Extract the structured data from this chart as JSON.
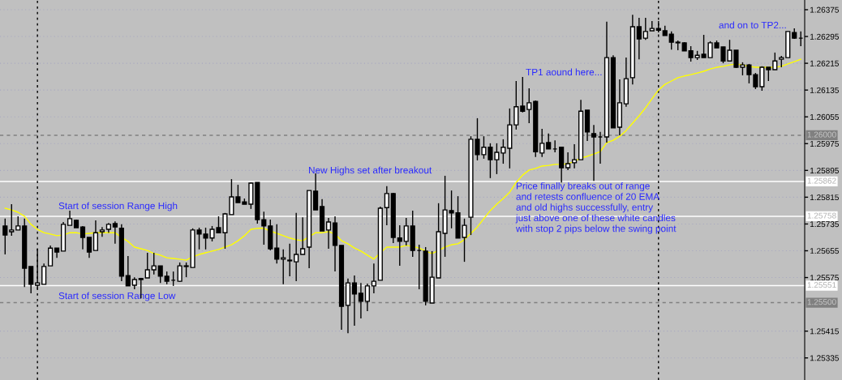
{
  "chart_data": {
    "type": "candlestick",
    "categories": [
      null,
      null,
      null,
      null,
      null,
      null,
      null,
      null,
      null,
      null,
      null,
      null,
      null,
      null,
      null,
      null,
      null,
      null,
      null,
      null,
      null,
      null,
      null,
      null,
      null,
      null,
      null,
      null,
      null,
      null,
      null,
      null,
      null,
      null,
      null,
      null,
      null,
      null,
      null,
      null,
      null,
      null,
      null,
      null,
      null,
      null,
      null,
      null,
      null,
      null,
      null,
      null,
      null,
      null,
      null,
      null,
      null,
      null,
      null,
      null,
      null,
      null,
      null,
      null,
      null,
      null,
      null,
      null,
      null,
      null,
      null,
      null,
      null,
      null,
      null,
      null,
      null,
      null,
      null,
      null,
      null,
      null,
      null,
      null,
      null,
      null,
      null,
      null,
      null,
      null,
      null,
      null,
      null,
      null,
      null,
      null,
      null,
      null,
      null,
      null,
      null,
      null,
      null,
      null,
      null,
      null,
      null,
      null,
      null,
      null,
      null,
      null,
      null,
      null,
      null,
      null,
      null,
      null,
      null,
      null,
      null,
      null,
      null,
      null
    ],
    "ohlc": [
      [
        1.25729,
        1.25751,
        1.25644,
        1.25702
      ],
      [
        1.25712,
        1.25794,
        1.257,
        1.25717
      ],
      [
        1.25717,
        1.25758,
        1.25717,
        1.25729
      ],
      [
        1.25729,
        1.25751,
        1.25547,
        1.25603
      ],
      [
        1.25608,
        1.25608,
        1.25528,
        1.25555
      ],
      [
        1.25552,
        1.25661,
        1.25542,
        1.25559
      ],
      [
        1.25555,
        1.25617,
        1.25555,
        1.25608
      ],
      [
        1.2561,
        1.25671,
        1.2561,
        1.25663
      ],
      [
        1.25663,
        1.25663,
        1.25634,
        1.25651
      ],
      [
        1.25654,
        1.25741,
        1.25654,
        1.25734
      ],
      [
        1.25731,
        1.25775,
        1.25731,
        1.25751
      ],
      [
        1.25746,
        1.25748,
        1.25724,
        1.25724
      ],
      [
        1.25726,
        1.25729,
        1.25659,
        1.25695
      ],
      [
        1.25695,
        1.25695,
        1.25634,
        1.25651
      ],
      [
        1.25656,
        1.25746,
        1.25656,
        1.25709
      ],
      [
        1.25712,
        1.25726,
        1.25697,
        1.25717
      ],
      [
        1.25719,
        1.25738,
        1.25709,
        1.25734
      ],
      [
        1.25736,
        1.25743,
        1.25676,
        1.25726
      ],
      [
        1.25722,
        1.25734,
        1.25564,
        1.25579
      ],
      [
        1.25581,
        1.25639,
        1.2555,
        1.2555
      ],
      [
        1.25552,
        1.25576,
        1.2554,
        1.25569
      ],
      [
        1.25572,
        1.25574,
        1.25513,
        1.25569
      ],
      [
        1.25574,
        1.25649,
        1.25574,
        1.25598
      ],
      [
        1.25598,
        1.25649,
        1.25584,
        1.2561
      ],
      [
        1.2561,
        1.2561,
        1.25559,
        1.25579
      ],
      [
        1.25579,
        1.25593,
        1.25555,
        1.25564
      ],
      [
        1.25567,
        1.25593,
        1.2555,
        1.25567
      ],
      [
        1.25564,
        1.2562,
        1.25562,
        1.2561
      ],
      [
        1.2561,
        1.2562,
        1.25576,
        1.25608
      ],
      [
        1.25605,
        1.25722,
        1.25605,
        1.25717
      ],
      [
        1.25717,
        1.25724,
        1.25659,
        1.25705
      ],
      [
        1.25705,
        1.25724,
        1.25659,
        1.25693
      ],
      [
        1.25693,
        1.25729,
        1.25683,
        1.25719
      ],
      [
        1.25724,
        1.25758,
        1.25709,
        1.25709
      ],
      [
        1.25709,
        1.25768,
        1.25661,
        1.25765
      ],
      [
        1.25763,
        1.25869,
        1.25763,
        1.25816
      ],
      [
        1.25816,
        1.25852,
        1.25799,
        1.25799
      ],
      [
        1.25801,
        1.25811,
        1.25794,
        1.25794
      ],
      [
        1.25794,
        1.25859,
        1.2578,
        1.25857
      ],
      [
        1.25859,
        1.25859,
        1.25736,
        1.25748
      ],
      [
        1.25748,
        1.25772,
        1.25673,
        1.25729
      ],
      [
        1.25729,
        1.25748,
        1.25656,
        1.25661
      ],
      [
        1.25663,
        1.25734,
        1.25617,
        1.2563
      ],
      [
        1.2563,
        1.25659,
        1.25555,
        1.25634
      ],
      [
        1.25627,
        1.25676,
        1.25579,
        1.25625
      ],
      [
        1.25622,
        1.25768,
        1.25564,
        1.25644
      ],
      [
        1.25644,
        1.25755,
        1.25644,
        1.25661
      ],
      [
        1.25666,
        1.25835,
        1.25603,
        1.25835
      ],
      [
        1.25833,
        1.25886,
        1.25777,
        1.25777
      ],
      [
        1.25787,
        1.25809,
        1.25714,
        1.25714
      ],
      [
        1.25717,
        1.25753,
        1.25661,
        1.25741
      ],
      [
        1.25738,
        1.25758,
        1.25593,
        1.25671
      ],
      [
        1.25671,
        1.25671,
        1.25419,
        1.25489
      ],
      [
        1.25492,
        1.25572,
        1.25409,
        1.25559
      ],
      [
        1.25559,
        1.25581,
        1.25431,
        1.25526
      ],
      [
        1.25528,
        1.25559,
        1.25453,
        1.25504
      ],
      [
        1.25504,
        1.25557,
        1.25475,
        1.2555
      ],
      [
        1.2555,
        1.25617,
        1.25528,
        1.25564
      ],
      [
        1.25567,
        1.25787,
        1.25567,
        1.25782
      ],
      [
        1.25784,
        1.25848,
        1.25731,
        1.25826
      ],
      [
        1.25826,
        1.25828,
        1.25678,
        1.25695
      ],
      [
        1.25693,
        1.25731,
        1.2561,
        1.25683
      ],
      [
        1.25683,
        1.25753,
        1.25671,
        1.25729
      ],
      [
        1.25729,
        1.25775,
        1.25637,
        1.25656
      ],
      [
        1.25656,
        1.25673,
        1.2554,
        1.25656
      ],
      [
        1.25654,
        1.25666,
        1.25492,
        1.25504
      ],
      [
        1.25499,
        1.25654,
        1.25499,
        1.25576
      ],
      [
        1.25574,
        1.25797,
        1.25574,
        1.25712
      ],
      [
        1.25707,
        1.25879,
        1.25637,
        1.25777
      ],
      [
        1.25775,
        1.25835,
        1.25722,
        1.25768
      ],
      [
        1.25768,
        1.25818,
        1.25693,
        1.25693
      ],
      [
        1.25695,
        1.25751,
        1.25622,
        1.25731
      ],
      [
        1.25755,
        1.25997,
        1.25702,
        1.25988
      ],
      [
        1.25988,
        1.26051,
        1.25925,
        1.25942
      ],
      [
        1.25942,
        1.25997,
        1.2593,
        1.25964
      ],
      [
        1.25964,
        1.25976,
        1.25872,
        1.25927
      ],
      [
        1.25927,
        1.25976,
        1.25884,
        1.25949
      ],
      [
        1.25947,
        1.25988,
        1.25915,
        1.25964
      ],
      [
        1.25961,
        1.2608,
        1.25901,
        1.26031
      ],
      [
        1.26031,
        1.26162,
        1.26017,
        1.26085
      ],
      [
        1.26087,
        1.26174,
        1.26068,
        1.26072
      ],
      [
        1.26077,
        1.2614,
        1.26036,
        1.26097
      ],
      [
        1.26101,
        1.26104,
        1.25935,
        1.25951
      ],
      [
        1.25947,
        1.26019,
        1.25935,
        1.25976
      ],
      [
        1.25978,
        1.26005,
        1.25959,
        1.25959
      ],
      [
        1.25959,
        1.25985,
        1.25949,
        1.25959
      ],
      [
        1.25964,
        1.25964,
        1.25859,
        1.25903
      ],
      [
        1.25903,
        1.25949,
        1.25896,
        1.25915
      ],
      [
        1.25918,
        1.25973,
        1.25901,
        1.25927
      ],
      [
        1.25927,
        1.26106,
        1.25927,
        1.26072
      ],
      [
        1.26075,
        1.26075,
        1.25983,
        1.2601
      ],
      [
        1.26005,
        1.26031,
        1.25864,
        1.25995
      ],
      [
        1.25995,
        1.2601,
        1.25915,
        1.25995
      ],
      [
        1.25995,
        1.26339,
        1.25978,
        1.26232
      ],
      [
        1.26232,
        1.26239,
        1.26022,
        1.26022
      ],
      [
        1.26024,
        1.26167,
        1.26,
        1.26097
      ],
      [
        1.26094,
        1.26232,
        1.26085,
        1.26169
      ],
      [
        1.26172,
        1.2636,
        1.26152,
        1.26324
      ],
      [
        1.26324,
        1.26351,
        1.26227,
        1.26288
      ],
      [
        1.2629,
        1.26351,
        1.26285,
        1.2631
      ],
      [
        1.26312,
        1.26341,
        1.26312,
        1.26319
      ],
      [
        1.26319,
        1.26341,
        1.26307,
        1.26314
      ],
      [
        1.26312,
        1.26327,
        1.26298,
        1.26298
      ],
      [
        1.26302,
        1.2631,
        1.26256,
        1.26278
      ],
      [
        1.26278,
        1.26283,
        1.26254,
        1.26276
      ],
      [
        1.26276,
        1.26278,
        1.26252,
        1.26252
      ],
      [
        1.26252,
        1.26266,
        1.2622,
        1.26232
      ],
      [
        1.26232,
        1.26252,
        1.26225,
        1.26239
      ],
      [
        1.26242,
        1.263,
        1.26232,
        1.26232
      ],
      [
        1.26232,
        1.26281,
        1.26232,
        1.26276
      ],
      [
        1.26276,
        1.26283,
        1.26261,
        1.26261
      ],
      [
        1.26264,
        1.26264,
        1.26215,
        1.26222
      ],
      [
        1.26222,
        1.26285,
        1.26222,
        1.26254
      ],
      [
        1.26254,
        1.26254,
        1.26201,
        1.26203
      ],
      [
        1.26203,
        1.26218,
        1.26179,
        1.2621
      ],
      [
        1.2621,
        1.26213,
        1.26155,
        1.26181
      ],
      [
        1.26181,
        1.26186,
        1.26138,
        1.26145
      ],
      [
        1.26145,
        1.26206,
        1.26133,
        1.26203
      ],
      [
        1.26203,
        1.26203,
        1.26162,
        1.26196
      ],
      [
        1.26196,
        1.26247,
        1.26196,
        1.26222
      ],
      [
        1.26227,
        1.26237,
        1.26203,
        1.26232
      ],
      [
        1.26232,
        1.2631,
        1.26232,
        1.2631
      ],
      [
        1.26307,
        1.26319,
        1.26288,
        1.2629
      ],
      [
        1.2629,
        1.2631,
        1.26266,
        1.2629
      ]
    ],
    "series": [
      {
        "type": "line",
        "color": "#ffff00",
        "values": [
          1.25782,
          1.25777,
          1.2577,
          1.25758,
          1.25734,
          1.25719,
          1.25709,
          1.25705,
          1.257,
          1.25702,
          1.25709,
          1.25709,
          1.25705,
          1.25707,
          1.25709,
          1.25709,
          1.25709,
          1.25709,
          1.25695,
          1.25683,
          1.25666,
          1.25661,
          1.25656,
          1.25647,
          1.25642,
          1.25634,
          1.25632,
          1.2563,
          1.25627,
          1.25637,
          1.25644,
          1.25649,
          1.25654,
          1.25659,
          1.25666,
          1.25673,
          1.25685,
          1.257,
          1.25719,
          1.25722,
          1.25722,
          1.25714,
          1.25707,
          1.257,
          1.25693,
          1.25688,
          1.25685,
          1.25697,
          1.25709,
          1.25709,
          1.25712,
          1.25705,
          1.25685,
          1.25676,
          1.25663,
          1.25654,
          1.25642,
          1.2563,
          1.25649,
          1.25666,
          1.25666,
          1.25666,
          1.25671,
          1.25668,
          1.25663,
          1.25654,
          1.25647,
          1.25656,
          1.25666,
          1.25673,
          1.25676,
          1.25688,
          1.25707,
          1.25726,
          1.25751,
          1.25775,
          1.25794,
          1.25811,
          1.2583,
          1.25859,
          1.25881,
          1.25896,
          1.25901,
          1.25908,
          1.2591,
          1.25913,
          1.25913,
          1.25915,
          1.25922,
          1.25932,
          1.25937,
          1.25944,
          1.25951,
          1.25978,
          1.25985,
          1.25997,
          1.26014,
          1.26036,
          1.26058,
          1.26082,
          1.26109,
          1.26135,
          1.26152,
          1.26162,
          1.26172,
          1.26177,
          1.26181,
          1.26186,
          1.26191,
          1.26198,
          1.26203,
          1.26206,
          1.2621,
          1.26213,
          1.2621,
          1.26206,
          1.26203,
          1.26203,
          1.26203,
          1.26203,
          1.26206,
          1.26213,
          1.2622,
          1.26227
        ]
      }
    ],
    "ylim": [
      1.25269,
      1.26404
    ],
    "yticks": [
      1.26375,
      1.26295,
      1.26215,
      1.26135,
      1.26055,
      1.25975,
      1.25895,
      1.25815,
      1.25735,
      1.25655,
      1.25575,
      1.25415,
      1.25335
    ],
    "tick_labels": "y",
    "grid": "y",
    "ref_lines": [
      {
        "axis": "y",
        "value": 1.26,
        "label": "1.26000",
        "color": "#808080",
        "line_style": "dashed"
      },
      {
        "axis": "y",
        "value": 1.25862,
        "label": "1.25862",
        "color": "#ffffff",
        "line_style": "solid"
      },
      {
        "axis": "y",
        "value": 1.25758,
        "label": "1.25758",
        "color": "#ffffff",
        "line_style": "solid"
      },
      {
        "axis": "y",
        "value": 1.25551,
        "label": "1.25551",
        "color": "#ffffff",
        "line_style": "solid"
      },
      {
        "axis": "y",
        "value": 1.255,
        "label": "1.25500",
        "color": "#808080",
        "line_style": "dashed"
      }
    ],
    "annotations": [
      "Start of session Range High",
      "Start of session Range Low",
      "New Highs set after breakout",
      "Price finally breaks out of range\nand retests confluence of 20 EMA\nand old highs successfully, entry\njust above one of these white candles\nwith stop 2 pips below the swing point",
      "TP1 aound here...",
      "and on to TP2..."
    ]
  }
}
